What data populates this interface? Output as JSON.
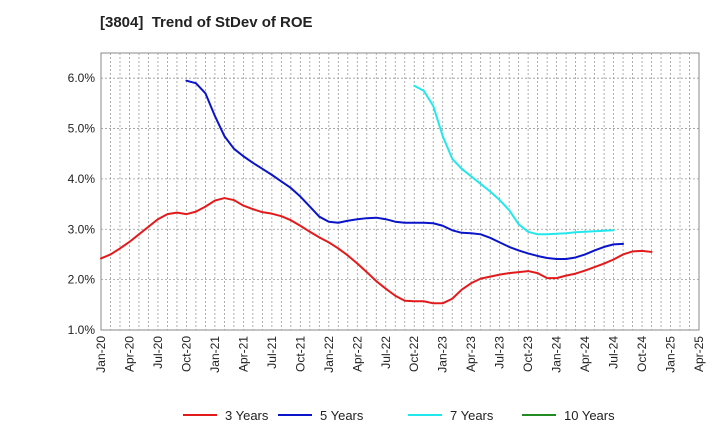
{
  "chart_data": {
    "type": "line",
    "title": "[3804]  Trend of StDev of ROE",
    "xlabel": "",
    "ylabel": "",
    "x_ticks": [
      "Jan-20",
      "Apr-20",
      "Jul-20",
      "Oct-20",
      "Jan-21",
      "Apr-21",
      "Jul-21",
      "Oct-21",
      "Jan-22",
      "Apr-22",
      "Jul-22",
      "Oct-22",
      "Jan-23",
      "Apr-23",
      "Jul-23",
      "Oct-23",
      "Jan-24",
      "Apr-24",
      "Jul-24",
      "Oct-24",
      "Jan-25",
      "Apr-25"
    ],
    "y_ticks": [
      "1.0%",
      "2.0%",
      "3.0%",
      "4.0%",
      "5.0%",
      "6.0%"
    ],
    "ylim": [
      1.0,
      6.5
    ],
    "grid": true,
    "legend_position": "bottom",
    "series": [
      {
        "name": "3 Years",
        "color": "#e31a1c",
        "start": "Jan-20",
        "values": [
          2.42,
          2.5,
          2.62,
          2.75,
          2.9,
          3.05,
          3.2,
          3.3,
          3.33,
          3.3,
          3.35,
          3.45,
          3.57,
          3.62,
          3.58,
          3.47,
          3.4,
          3.34,
          3.31,
          3.26,
          3.18,
          3.07,
          2.95,
          2.84,
          2.74,
          2.62,
          2.48,
          2.32,
          2.15,
          1.97,
          1.82,
          1.68,
          1.58,
          1.57,
          1.57,
          1.53,
          1.53,
          1.62,
          1.8,
          1.93,
          2.02,
          2.06,
          2.1,
          2.13,
          2.15,
          2.17,
          2.13,
          2.03,
          2.03,
          2.08,
          2.12,
          2.18,
          2.25,
          2.32,
          2.4,
          2.5,
          2.56,
          2.57,
          2.55
        ]
      },
      {
        "name": "5 Years",
        "color": "#0a14c8",
        "start": "Oct-20",
        "values": [
          5.95,
          5.9,
          5.7,
          5.25,
          4.85,
          4.6,
          4.45,
          4.32,
          4.2,
          4.08,
          3.95,
          3.82,
          3.65,
          3.45,
          3.25,
          3.15,
          3.13,
          3.17,
          3.2,
          3.22,
          3.23,
          3.2,
          3.15,
          3.13,
          3.13,
          3.13,
          3.12,
          3.07,
          2.98,
          2.93,
          2.92,
          2.9,
          2.83,
          2.74,
          2.65,
          2.58,
          2.52,
          2.47,
          2.43,
          2.41,
          2.41,
          2.44,
          2.5,
          2.58,
          2.65,
          2.7,
          2.71
        ]
      },
      {
        "name": "7 Years",
        "color": "#22e8ee",
        "start": "Oct-22",
        "values": [
          5.85,
          5.75,
          5.45,
          4.85,
          4.4,
          4.2,
          4.05,
          3.9,
          3.75,
          3.58,
          3.38,
          3.1,
          2.95,
          2.9,
          2.9,
          2.91,
          2.92,
          2.94,
          2.95,
          2.96,
          2.97,
          2.98
        ]
      },
      {
        "name": "10 Years",
        "color": "#228b22",
        "start": "Jan-25",
        "values": []
      }
    ]
  }
}
